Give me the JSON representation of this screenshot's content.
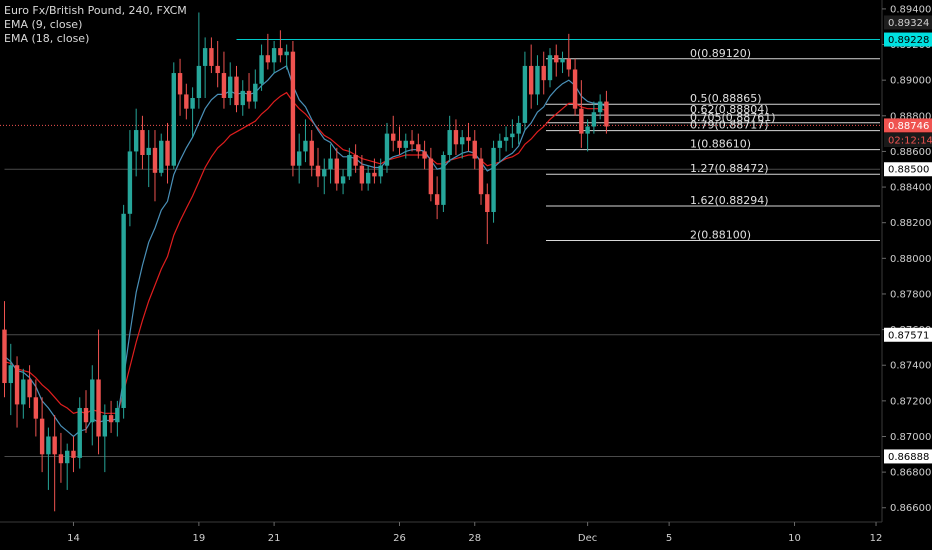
{
  "legend": {
    "title": "Euro Fx/British Pound, 240, FXCM",
    "ema1": "EMA (9, close)",
    "ema2": "EMA (18, close)"
  },
  "chart_data": {
    "type": "candlestick",
    "ylim": [
      0.8652,
      0.8945
    ],
    "y_ticks": [
      0.866,
      0.868,
      0.87,
      0.872,
      0.874,
      0.876,
      0.878,
      0.88,
      0.882,
      0.884,
      0.886,
      0.888,
      0.89,
      0.892,
      0.894
    ],
    "y_tick_labels": [
      "0.86600",
      "0.86800",
      "0.87000",
      "0.87200",
      "0.87400",
      "0.87600",
      "0.87800",
      "0.88000",
      "0.88200",
      "0.88400",
      "0.88600",
      "0.88800",
      "0.89000",
      "0.89200",
      "0.89400"
    ],
    "x_ticks": [
      {
        "label": "14",
        "i": 11
      },
      {
        "label": "19",
        "i": 31
      },
      {
        "label": "21",
        "i": 43
      },
      {
        "label": "26",
        "i": 63
      },
      {
        "label": "28",
        "i": 75
      },
      {
        "label": "Dec",
        "i": 93
      },
      {
        "label": "5",
        "i": 106
      },
      {
        "label": "10",
        "i": 126
      },
      {
        "label": "12",
        "i": 139
      }
    ],
    "colors": {
      "up": "#26a69a",
      "down": "#ef5350",
      "ema9": "#4a90b8",
      "ema18": "#e01e1e",
      "cyan": "#00e0e0",
      "price": "#ef5350"
    },
    "candles": [
      [
        0.876,
        0.8776,
        0.8722,
        0.873
      ],
      [
        0.873,
        0.8752,
        0.8712,
        0.874
      ],
      [
        0.874,
        0.8745,
        0.8705,
        0.8718
      ],
      [
        0.8718,
        0.8738,
        0.871,
        0.8732
      ],
      [
        0.8732,
        0.874,
        0.8716,
        0.8722
      ],
      [
        0.8722,
        0.8732,
        0.87,
        0.871
      ],
      [
        0.871,
        0.8722,
        0.868,
        0.869
      ],
      [
        0.869,
        0.8705,
        0.867,
        0.87
      ],
      [
        0.87,
        0.8712,
        0.8658,
        0.869
      ],
      [
        0.869,
        0.8702,
        0.8674,
        0.8685
      ],
      [
        0.8685,
        0.8696,
        0.867,
        0.8692
      ],
      [
        0.8692,
        0.87,
        0.868,
        0.8688
      ],
      [
        0.8688,
        0.8722,
        0.8682,
        0.8716
      ],
      [
        0.8716,
        0.8726,
        0.8702,
        0.8708
      ],
      [
        0.8708,
        0.874,
        0.8695,
        0.8732
      ],
      [
        0.8732,
        0.876,
        0.869,
        0.87
      ],
      [
        0.87,
        0.8718,
        0.868,
        0.8712
      ],
      [
        0.8712,
        0.872,
        0.8702,
        0.8708
      ],
      [
        0.8708,
        0.872,
        0.87,
        0.8716
      ],
      [
        0.8716,
        0.883,
        0.871,
        0.8825
      ],
      [
        0.8825,
        0.8872,
        0.8818,
        0.886
      ],
      [
        0.886,
        0.8884,
        0.8846,
        0.8872
      ],
      [
        0.8872,
        0.888,
        0.885,
        0.8858
      ],
      [
        0.8858,
        0.8872,
        0.884,
        0.8862
      ],
      [
        0.8862,
        0.8872,
        0.8832,
        0.8848
      ],
      [
        0.8848,
        0.887,
        0.8846,
        0.8866
      ],
      [
        0.8866,
        0.8876,
        0.8842,
        0.8852
      ],
      [
        0.8852,
        0.891,
        0.885,
        0.8904
      ],
      [
        0.8904,
        0.8912,
        0.888,
        0.8892
      ],
      [
        0.8892,
        0.8898,
        0.8878,
        0.8884
      ],
      [
        0.8884,
        0.8896,
        0.8868,
        0.889
      ],
      [
        0.889,
        0.8938,
        0.8884,
        0.8908
      ],
      [
        0.8908,
        0.8924,
        0.889,
        0.8918
      ],
      [
        0.8918,
        0.8924,
        0.8904,
        0.8908
      ],
      [
        0.8908,
        0.8922,
        0.8896,
        0.8904
      ],
      [
        0.8904,
        0.8916,
        0.8884,
        0.889
      ],
      [
        0.889,
        0.891,
        0.8886,
        0.8902
      ],
      [
        0.8902,
        0.8908,
        0.8882,
        0.8886
      ],
      [
        0.8886,
        0.89,
        0.888,
        0.8894
      ],
      [
        0.8894,
        0.8904,
        0.8884,
        0.8888
      ],
      [
        0.8888,
        0.8906,
        0.8884,
        0.8898
      ],
      [
        0.8898,
        0.892,
        0.8894,
        0.8914
      ],
      [
        0.8914,
        0.8926,
        0.8906,
        0.891
      ],
      [
        0.891,
        0.8922,
        0.8904,
        0.8918
      ],
      [
        0.8918,
        0.8928,
        0.891,
        0.8914
      ],
      [
        0.8914,
        0.892,
        0.8906,
        0.8916
      ],
      [
        0.8916,
        0.8922,
        0.8846,
        0.8852
      ],
      [
        0.8852,
        0.887,
        0.8842,
        0.886
      ],
      [
        0.886,
        0.8878,
        0.8854,
        0.8866
      ],
      [
        0.8866,
        0.8872,
        0.8846,
        0.8852
      ],
      [
        0.8852,
        0.8862,
        0.884,
        0.8846
      ],
      [
        0.8846,
        0.8856,
        0.8836,
        0.885
      ],
      [
        0.885,
        0.8864,
        0.8842,
        0.8856
      ],
      [
        0.8856,
        0.8862,
        0.8838,
        0.8842
      ],
      [
        0.8842,
        0.885,
        0.8836,
        0.8846
      ],
      [
        0.8846,
        0.8862,
        0.8844,
        0.8858
      ],
      [
        0.8858,
        0.8864,
        0.8848,
        0.8852
      ],
      [
        0.8852,
        0.8858,
        0.8838,
        0.8842
      ],
      [
        0.8842,
        0.8852,
        0.8838,
        0.8848
      ],
      [
        0.8848,
        0.8856,
        0.8842,
        0.8846
      ],
      [
        0.8846,
        0.8856,
        0.8842,
        0.8852
      ],
      [
        0.8852,
        0.8876,
        0.8848,
        0.887
      ],
      [
        0.887,
        0.888,
        0.886,
        0.8866
      ],
      [
        0.8866,
        0.8874,
        0.8858,
        0.8862
      ],
      [
        0.8862,
        0.887,
        0.8856,
        0.8866
      ],
      [
        0.8866,
        0.8872,
        0.886,
        0.8864
      ],
      [
        0.8864,
        0.887,
        0.8856,
        0.886
      ],
      [
        0.886,
        0.8866,
        0.885,
        0.8856
      ],
      [
        0.8856,
        0.8862,
        0.8832,
        0.8836
      ],
      [
        0.8836,
        0.8846,
        0.8822,
        0.883
      ],
      [
        0.883,
        0.886,
        0.8826,
        0.8858
      ],
      [
        0.8858,
        0.888,
        0.8854,
        0.8872
      ],
      [
        0.8872,
        0.8878,
        0.8858,
        0.8864
      ],
      [
        0.8864,
        0.8872,
        0.8856,
        0.8868
      ],
      [
        0.8868,
        0.8876,
        0.886,
        0.8866
      ],
      [
        0.8866,
        0.8872,
        0.885,
        0.8856
      ],
      [
        0.8856,
        0.8862,
        0.883,
        0.8836
      ],
      [
        0.8836,
        0.8842,
        0.8808,
        0.8826
      ],
      [
        0.8826,
        0.8866,
        0.882,
        0.8862
      ],
      [
        0.8862,
        0.887,
        0.8854,
        0.8866
      ],
      [
        0.8866,
        0.8874,
        0.886,
        0.8868
      ],
      [
        0.8868,
        0.8878,
        0.8862,
        0.887
      ],
      [
        0.887,
        0.888,
        0.8864,
        0.8876
      ],
      [
        0.8876,
        0.8916,
        0.8872,
        0.8908
      ],
      [
        0.8908,
        0.892,
        0.8884,
        0.8892
      ],
      [
        0.8892,
        0.8914,
        0.8886,
        0.8908
      ],
      [
        0.8908,
        0.8916,
        0.8892,
        0.89
      ],
      [
        0.89,
        0.8918,
        0.8896,
        0.8914
      ],
      [
        0.8914,
        0.892,
        0.8902,
        0.891
      ],
      [
        0.891,
        0.8916,
        0.8904,
        0.8912
      ],
      [
        0.8912,
        0.8926,
        0.8902,
        0.8906
      ],
      [
        0.8906,
        0.8912,
        0.888,
        0.8884
      ],
      [
        0.8884,
        0.89,
        0.8862,
        0.887
      ],
      [
        0.887,
        0.8878,
        0.886,
        0.8874
      ],
      [
        0.8874,
        0.8888,
        0.887,
        0.8882
      ],
      [
        0.8882,
        0.8892,
        0.8878,
        0.8888
      ],
      [
        0.8888,
        0.8894,
        0.887,
        0.8874
      ]
    ],
    "ema9": [
      0.8745,
      0.8742,
      0.8737,
      0.8736,
      0.8733,
      0.8728,
      0.872,
      0.8716,
      0.8711,
      0.8706,
      0.8703,
      0.87,
      0.8703,
      0.8704,
      0.871,
      0.8708,
      0.8709,
      0.8709,
      0.871,
      0.8733,
      0.8758,
      0.8781,
      0.8796,
      0.8809,
      0.8817,
      0.8827,
      0.8832,
      0.8847,
      0.8855,
      0.8862,
      0.8868,
      0.8876,
      0.8884,
      0.8889,
      0.8892,
      0.8892,
      0.8894,
      0.8892,
      0.8893,
      0.8892,
      0.8893,
      0.8897,
      0.89,
      0.8904,
      0.8906,
      0.8908,
      0.8897,
      0.8889,
      0.8885,
      0.8878,
      0.8872,
      0.8867,
      0.8865,
      0.886,
      0.8857,
      0.8857,
      0.8856,
      0.8853,
      0.8852,
      0.8851,
      0.8851,
      0.8855,
      0.8857,
      0.8858,
      0.886,
      0.8861,
      0.8861,
      0.886,
      0.8855,
      0.885,
      0.8851,
      0.8855,
      0.8857,
      0.8859,
      0.886,
      0.8859,
      0.8854,
      0.8849,
      0.8851,
      0.8854,
      0.8857,
      0.8859,
      0.8863,
      0.8872,
      0.8876,
      0.8882,
      0.8885,
      0.8891,
      0.8895,
      0.8898,
      0.89,
      0.8897,
      0.8891,
      0.8888,
      0.8887,
      0.8887,
      0.8885
    ],
    "ema18": [
      0.8742,
      0.8741,
      0.8738,
      0.8737,
      0.8736,
      0.8733,
      0.8729,
      0.8726,
      0.8722,
      0.8718,
      0.8716,
      0.8713,
      0.8714,
      0.8713,
      0.8715,
      0.8714,
      0.8713,
      0.8713,
      0.8713,
      0.8725,
      0.8739,
      0.8753,
      0.8765,
      0.8776,
      0.8785,
      0.8794,
      0.8801,
      0.8813,
      0.8821,
      0.8828,
      0.8835,
      0.8843,
      0.8851,
      0.8857,
      0.8862,
      0.8865,
      0.8869,
      0.8871,
      0.8873,
      0.8875,
      0.8877,
      0.8881,
      0.8884,
      0.8888,
      0.8891,
      0.8893,
      0.8888,
      0.8884,
      0.8881,
      0.8877,
      0.8873,
      0.8869,
      0.8867,
      0.8864,
      0.8861,
      0.886,
      0.8858,
      0.8856,
      0.8855,
      0.8854,
      0.8853,
      0.8855,
      0.8856,
      0.8857,
      0.8858,
      0.8858,
      0.8858,
      0.8858,
      0.8856,
      0.8853,
      0.8853,
      0.8855,
      0.8856,
      0.8857,
      0.8858,
      0.8858,
      0.8855,
      0.8852,
      0.8853,
      0.8854,
      0.8856,
      0.8857,
      0.8859,
      0.8864,
      0.8867,
      0.8871,
      0.8874,
      0.8878,
      0.8881,
      0.8884,
      0.8887,
      0.8887,
      0.8885,
      0.8884,
      0.8884,
      0.8884,
      0.8883
    ],
    "hlines": [
      {
        "price": 0.89228,
        "color": "#00c8c8",
        "from_i": 37
      },
      {
        "price": 0.885,
        "color": "#4a4a4a",
        "from_i": 0
      },
      {
        "price": 0.87571,
        "color": "#4a4a4a",
        "from_i": 0
      },
      {
        "price": 0.86888,
        "color": "#4a4a4a",
        "from_i": 0
      }
    ],
    "fib": [
      {
        "label": "0(0.89120)",
        "price": 0.8912
      },
      {
        "label": "0.5(0.88865)",
        "price": 0.88865
      },
      {
        "label": "0.62(0.88804)",
        "price": 0.88804
      },
      {
        "label": "0.705(0.88761)",
        "price": 0.88761
      },
      {
        "label": "0.79(0.88717)",
        "price": 0.88717
      },
      {
        "label": "1(0.88610)",
        "price": 0.8861
      },
      {
        "label": "1.27(0.88472)",
        "price": 0.88472
      },
      {
        "label": "1.62(0.88294)",
        "price": 0.88294
      },
      {
        "label": "2(0.88100)",
        "price": 0.881
      }
    ],
    "badges": [
      {
        "text": "0.89324",
        "price": 0.89324,
        "bg": "#1e1e1e",
        "fg": "#d0d0d0"
      },
      {
        "text": "0.89228",
        "price": 0.89228,
        "bg": "#00e0e0",
        "fg": "#000000"
      },
      {
        "text": "0.88746",
        "price": 0.88746,
        "bg": "#ef5350",
        "fg": "#ffffff"
      },
      {
        "text": "02:12:14",
        "price": 0.88664,
        "bg": "#1a1a1a",
        "fg": "#ef5350"
      },
      {
        "text": "0.88500",
        "price": 0.885,
        "bg": "#ffffff",
        "fg": "#000000"
      },
      {
        "text": "0.87571",
        "price": 0.87571,
        "bg": "#ffffff",
        "fg": "#000000"
      },
      {
        "text": "0.86888",
        "price": 0.86888,
        "bg": "#ffffff",
        "fg": "#000000"
      }
    ],
    "current_price": 0.88746
  }
}
